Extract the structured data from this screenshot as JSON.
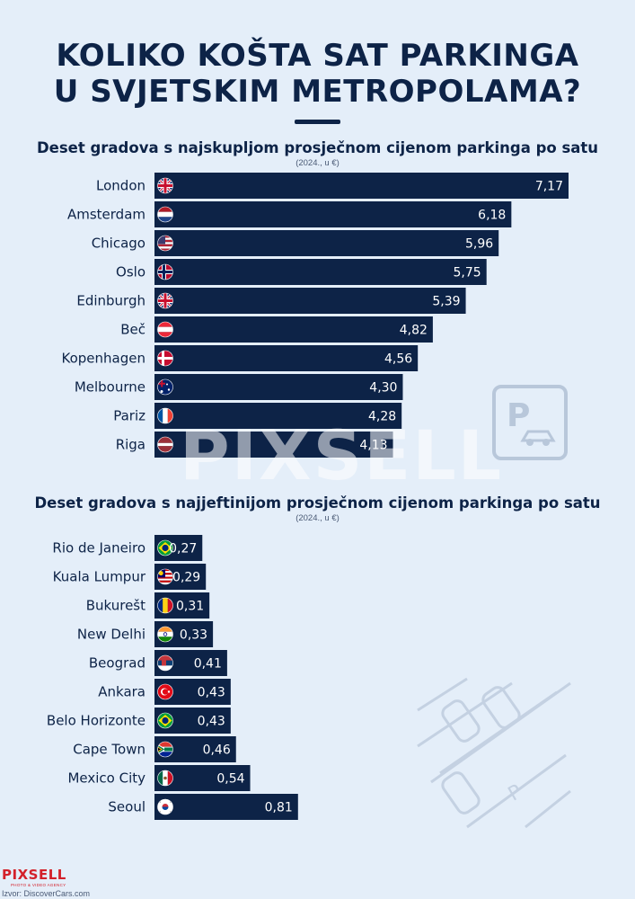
{
  "title": {
    "line1": "KOLIKO KOŠTA SAT PARKINGA",
    "line2": "U SVJETSKIM METROPOLAMA?"
  },
  "chart_data": [
    {
      "type": "bar",
      "orientation": "horizontal",
      "title": "Deset gradova s najskupljom prosječnom cijenom parkinga po satu",
      "subtitle": "(2024., u €)",
      "categories": [
        "London",
        "Amsterdam",
        "Chicago",
        "Oslo",
        "Edinburgh",
        "Beč",
        "Kopenhagen",
        "Melbourne",
        "Pariz",
        "Riga"
      ],
      "values": [
        7.17,
        6.18,
        5.96,
        5.75,
        5.39,
        4.82,
        4.56,
        4.3,
        4.28,
        4.13
      ],
      "value_labels": [
        "7,17",
        "6,18",
        "5,96",
        "5,75",
        "5,39",
        "4,82",
        "4,56",
        "4,30",
        "4,28",
        "4,13"
      ],
      "flags": [
        "uk",
        "netherlands",
        "usa",
        "norway",
        "uk",
        "austria",
        "denmark",
        "australia",
        "france",
        "latvia"
      ],
      "xlim": [
        0,
        7.17
      ],
      "bar_color": "#0d2347"
    },
    {
      "type": "bar",
      "orientation": "horizontal",
      "title": "Deset gradova s najjeftinijom prosječnom cijenom parkinga po satu",
      "subtitle": "(2024., u €)",
      "categories": [
        "Rio de Janeiro",
        "Kuala Lumpur",
        "Bukurešt",
        "New Delhi",
        "Beograd",
        "Ankara",
        "Belo Horizonte",
        "Cape Town",
        "Mexico City",
        "Seoul"
      ],
      "values": [
        0.27,
        0.29,
        0.31,
        0.33,
        0.41,
        0.43,
        0.43,
        0.46,
        0.54,
        0.81
      ],
      "value_labels": [
        "0,27",
        "0,29",
        "0,31",
        "0,33",
        "0,41",
        "0,43",
        "0,43",
        "0,46",
        "0,54",
        "0,81"
      ],
      "flags": [
        "brazil",
        "malaysia",
        "romania",
        "india",
        "serbia",
        "turkey",
        "brazil",
        "south-africa",
        "mexico",
        "south-korea"
      ],
      "xlim": [
        0,
        2.955
      ],
      "bar_color": "#0d2347"
    }
  ],
  "watermark": "PIXSELL",
  "logo": {
    "name": "PIXSELL",
    "tagline": "PHOTO & VIDEO AGENCY"
  },
  "source": "Izvor: DiscoverCars.com",
  "colors": {
    "background": "#e4eef9",
    "navy": "#0d2347",
    "brand_red": "#d3202a"
  }
}
